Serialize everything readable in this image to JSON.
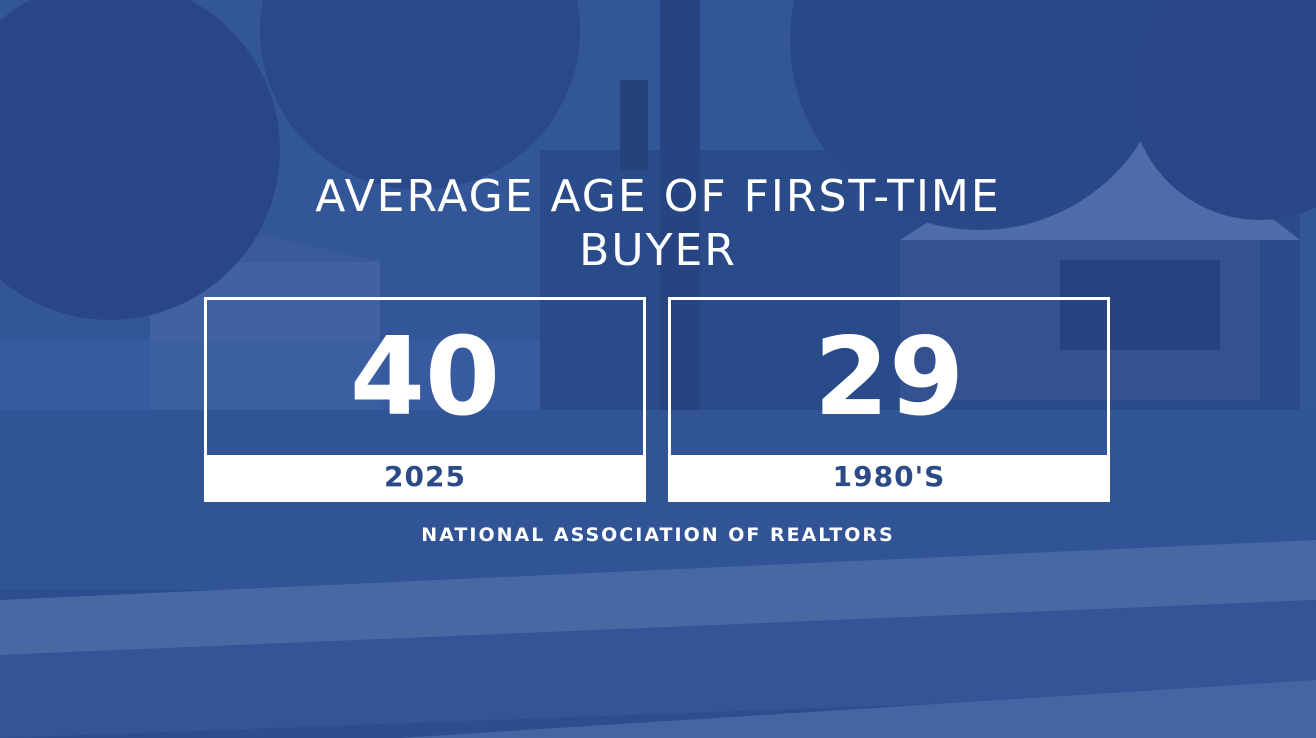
{
  "graphic": {
    "title_line1": "AVERAGE AGE OF FIRST-TIME",
    "title_line2": "BUYER",
    "stats": [
      {
        "value": "40",
        "label": "2025"
      },
      {
        "value": "29",
        "label": "1980'S"
      }
    ],
    "source": "NATIONAL ASSOCIATION OF REALTORS"
  },
  "colors": {
    "overlay_blue": "#2f4f8f",
    "label_text": "#2b4a86",
    "foreground": "#ffffff"
  }
}
